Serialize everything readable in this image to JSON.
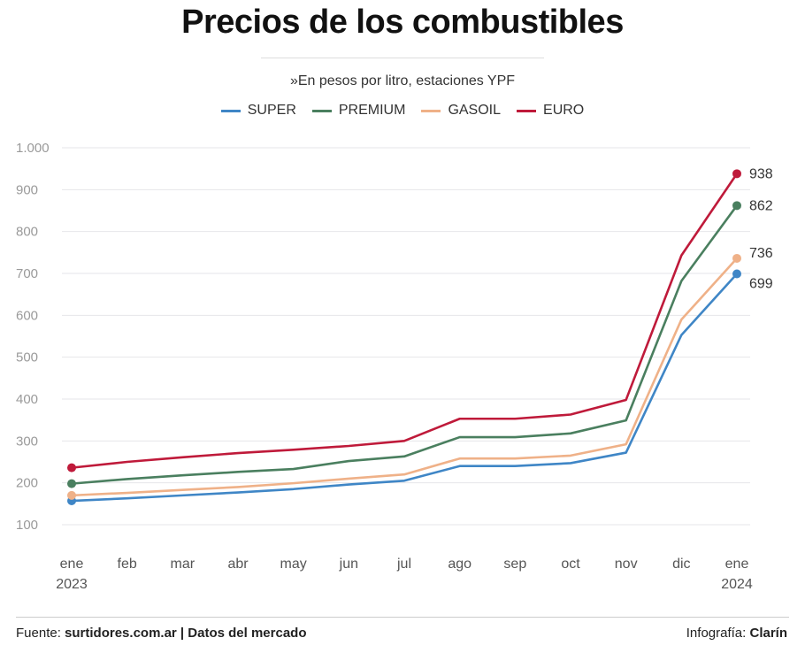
{
  "chart_data": {
    "type": "line",
    "title": "Precios de los combustibles",
    "subtitle": "»En pesos por litro, estaciones YPF",
    "x_ticks": [
      {
        "top": "ene",
        "bottom": "2023"
      },
      {
        "top": "feb",
        "bottom": ""
      },
      {
        "top": "mar",
        "bottom": ""
      },
      {
        "top": "abr",
        "bottom": ""
      },
      {
        "top": "may",
        "bottom": ""
      },
      {
        "top": "jun",
        "bottom": ""
      },
      {
        "top": "jul",
        "bottom": ""
      },
      {
        "top": "ago",
        "bottom": ""
      },
      {
        "top": "sep",
        "bottom": ""
      },
      {
        "top": "oct",
        "bottom": ""
      },
      {
        "top": "nov",
        "bottom": ""
      },
      {
        "top": "dic",
        "bottom": ""
      },
      {
        "top": "ene",
        "bottom": "2024"
      }
    ],
    "y_ticks": [
      "100",
      "200",
      "300",
      "400",
      "500",
      "600",
      "700",
      "800",
      "900",
      "1.000"
    ],
    "ylim": [
      100,
      1000
    ],
    "grid": true,
    "legend_placement": "top-center",
    "series": [
      {
        "name": "SUPER",
        "color": "#3f86c6",
        "values": [
          157,
          163,
          170,
          177,
          185,
          196,
          205,
          240,
          240,
          247,
          272,
          553,
          699
        ],
        "end_label": "699"
      },
      {
        "name": "PREMIUM",
        "color": "#4a7f5f",
        "values": [
          198,
          209,
          218,
          226,
          233,
          252,
          263,
          309,
          309,
          318,
          349,
          682,
          862
        ],
        "end_label": "862"
      },
      {
        "name": "GASOIL",
        "color": "#efb188",
        "values": [
          170,
          176,
          183,
          190,
          199,
          210,
          220,
          258,
          258,
          265,
          292,
          590,
          736
        ],
        "end_label": "736"
      },
      {
        "name": "EURO",
        "color": "#bf1a3a",
        "values": [
          236,
          250,
          261,
          271,
          279,
          288,
          300,
          353,
          353,
          363,
          398,
          743,
          938
        ],
        "end_label": "938"
      }
    ]
  },
  "footer": {
    "source_prefix": "Fuente: ",
    "source_bold": "surtidores.com.ar | Datos del mercado",
    "credit_prefix": "Infografía: ",
    "credit_bold": "Clarín"
  }
}
